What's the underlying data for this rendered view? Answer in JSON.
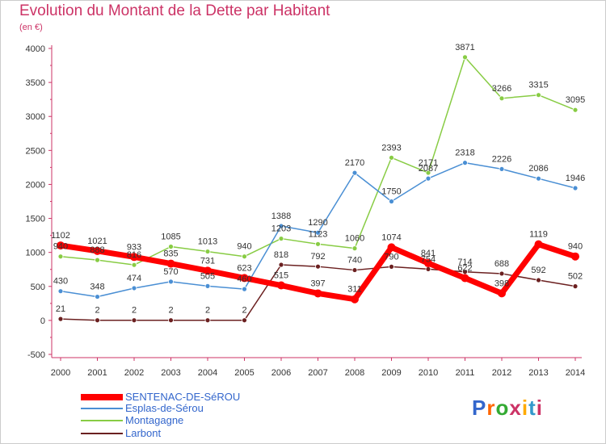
{
  "title": "Evolution du Montant de la Dette par Habitant",
  "unit_label": "(en €)",
  "logo_text": "Proxiti",
  "logo_colors": [
    "#3366cc",
    "#ff6600",
    "#33aa33",
    "#cc3366",
    "#ffaa00",
    "#3399cc",
    "#cc3366"
  ],
  "chart_data": {
    "type": "line",
    "title": "Evolution du Montant de la Dette par Habitant",
    "subtitle": "(en €)",
    "x": [
      "2000",
      "2001",
      "2002",
      "2003",
      "2004",
      "2005",
      "2006",
      "2007",
      "2008",
      "2009",
      "2010",
      "2011",
      "2012",
      "2013",
      "2014"
    ],
    "ylim": [
      -500,
      4000
    ],
    "yticks": [
      "-500",
      "0",
      "500",
      "1000",
      "1500",
      "2000",
      "2500",
      "3000",
      "3500",
      "4000"
    ],
    "grid": false,
    "legend_position": "bottom-left",
    "series": [
      {
        "name": "SENTENAC-DE-SéROU",
        "color": "#ff0000",
        "values": [
          1102,
          1021,
          933,
          835,
          731,
          623,
          515,
          397,
          311,
          1074,
          841,
          622,
          398,
          1119,
          940
        ],
        "labels": [
          "1102",
          "1021",
          "933",
          "835",
          "731",
          "623",
          "515",
          "397",
          "311",
          "1074",
          "841",
          "622",
          "398",
          "1119",
          "940"
        ]
      },
      {
        "name": "Esplas-de-Sérou",
        "color": "#4a8fd4",
        "values": [
          430,
          348,
          474,
          570,
          505,
          460,
          1388,
          1290,
          2170,
          1750,
          2087,
          2318,
          2226,
          2086,
          1946
        ],
        "labels": [
          "430",
          "348",
          "474",
          "570",
          "505",
          "460",
          "1388",
          "1290",
          "2170",
          "1750",
          "2087",
          "2318",
          "2226",
          "2086",
          "1946"
        ]
      },
      {
        "name": "Montagagne",
        "color": "#88cc44",
        "values": [
          940,
          888,
          816,
          1085,
          1013,
          940,
          1203,
          1123,
          1060,
          2393,
          2171,
          3871,
          3266,
          3315,
          3095
        ],
        "labels": [
          "940",
          "888",
          "816",
          "1085",
          "1013",
          "940",
          "1203",
          "1123",
          "1060",
          "2393",
          "2171",
          "3871",
          "3266",
          "3315",
          "3095"
        ]
      },
      {
        "name": "Larbont",
        "color": "#6b2020",
        "values": [
          21,
          2,
          2,
          2,
          2,
          2,
          818,
          792,
          740,
          790,
          754,
          714,
          688,
          592,
          502
        ],
        "labels": [
          "21",
          "2",
          "2",
          "2",
          "2",
          "2",
          "818",
          "792",
          "740",
          "790",
          "754",
          "714",
          "688",
          "592",
          "502"
        ]
      }
    ]
  }
}
